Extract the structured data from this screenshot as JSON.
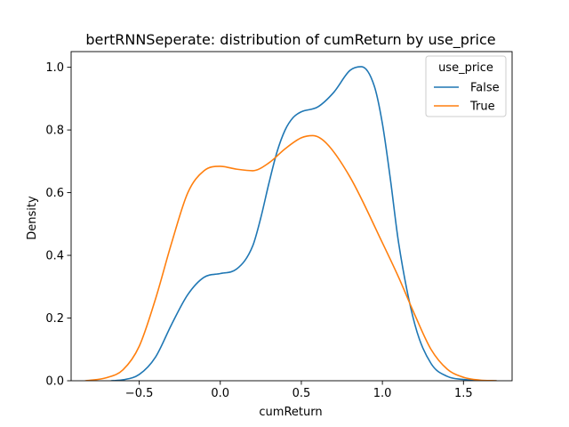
{
  "chart_data": {
    "type": "line",
    "title": "bertRNNSeperate: distribution of cumReturn by use_price",
    "xlabel": "cumReturn",
    "ylabel": "Density",
    "xlim": [
      -0.92,
      1.8
    ],
    "ylim": [
      0,
      1.05
    ],
    "xticks": [
      -0.5,
      0.0,
      0.5,
      1.0,
      1.5
    ],
    "xtick_labels": [
      "−0.5",
      "0.0",
      "0.5",
      "1.0",
      "1.5"
    ],
    "yticks": [
      0.0,
      0.2,
      0.4,
      0.6,
      0.8,
      1.0
    ],
    "ytick_labels": [
      "0.0",
      "0.2",
      "0.4",
      "0.6",
      "0.8",
      "1.0"
    ],
    "grid": false,
    "legend": {
      "title": "use_price",
      "placement": "top-right"
    },
    "series": [
      {
        "name": "False",
        "color": "#1f77b4",
        "x": [
          -0.67,
          -0.6,
          -0.5,
          -0.4,
          -0.3,
          -0.2,
          -0.1,
          0.0,
          0.1,
          0.2,
          0.25,
          0.3,
          0.35,
          0.4,
          0.45,
          0.5,
          0.6,
          0.7,
          0.8,
          0.87,
          0.95,
          1.0,
          1.05,
          1.1,
          1.2,
          1.3,
          1.4,
          1.5,
          1.6,
          1.7
        ],
        "y": [
          0.0,
          0.003,
          0.02,
          0.075,
          0.18,
          0.275,
          0.33,
          0.342,
          0.356,
          0.43,
          0.52,
          0.63,
          0.73,
          0.8,
          0.84,
          0.858,
          0.873,
          0.92,
          0.99,
          1.002,
          0.94,
          0.82,
          0.64,
          0.44,
          0.18,
          0.055,
          0.014,
          0.004,
          0.001,
          0.0
        ]
      },
      {
        "name": "True",
        "color": "#ff7f0e",
        "x": [
          -0.83,
          -0.7,
          -0.6,
          -0.5,
          -0.4,
          -0.3,
          -0.2,
          -0.1,
          0.0,
          0.1,
          0.2,
          0.3,
          0.4,
          0.5,
          0.57,
          0.65,
          0.8,
          1.0,
          1.1,
          1.2,
          1.3,
          1.4,
          1.5,
          1.6,
          1.7
        ],
        "y": [
          0.0,
          0.01,
          0.035,
          0.11,
          0.26,
          0.44,
          0.6,
          0.67,
          0.684,
          0.675,
          0.67,
          0.695,
          0.74,
          0.775,
          0.782,
          0.76,
          0.65,
          0.44,
          0.33,
          0.21,
          0.1,
          0.037,
          0.011,
          0.002,
          0.0
        ]
      }
    ]
  }
}
